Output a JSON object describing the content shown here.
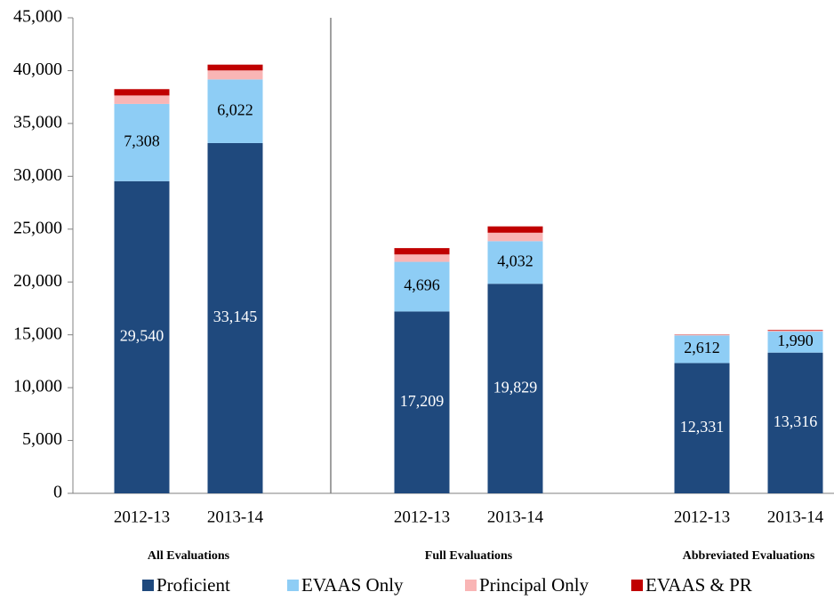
{
  "chart_data": {
    "type": "stacked_bar",
    "categories": [
      "2012-13",
      "2013-14",
      "2012-13",
      "2013-14",
      "2012-13",
      "2013-14"
    ],
    "groups": [
      "All Evaluations",
      "Full Evaluations",
      "Abbreviated Evaluations"
    ],
    "series": [
      {
        "name": "Proficient",
        "color": "#1f497d",
        "values": [
          29540,
          33145,
          17209,
          19829,
          12331,
          13316
        ],
        "value_labels": [
          "29,540",
          "33,145",
          "17,209",
          "19,829",
          "12,331",
          "13,316"
        ]
      },
      {
        "name": "EVAAS Only",
        "color": "#8ecdf5",
        "values": [
          7308,
          6022,
          4696,
          4032,
          2612,
          1990
        ],
        "value_labels": [
          "7,308",
          "6,022",
          "4,696",
          "4,032",
          "2,612",
          "1,990"
        ]
      },
      {
        "name": "Principal Only",
        "color": "#f9b5b5",
        "values": [
          800,
          850,
          700,
          800,
          50,
          120
        ]
      },
      {
        "name": "EVAAS & PR",
        "color": "#c00000",
        "values": [
          600,
          550,
          600,
          600,
          30,
          50
        ]
      }
    ],
    "ylim": [
      0,
      45000
    ],
    "yticks": [
      0,
      {
        "value": 5000,
        "label": "5,000"
      },
      {
        "value": 10000,
        "label": "10,000"
      },
      {
        "value": 15000,
        "label": "15,000"
      },
      {
        "value": 20000,
        "label": "20,000"
      },
      {
        "value": 25000,
        "label": "25,000"
      },
      {
        "value": 30000,
        "label": "30,000"
      },
      {
        "value": 35000,
        "label": "35,000"
      },
      {
        "value": 40000,
        "label": "40,000"
      },
      {
        "value": 45000,
        "label": "45,000"
      }
    ]
  }
}
